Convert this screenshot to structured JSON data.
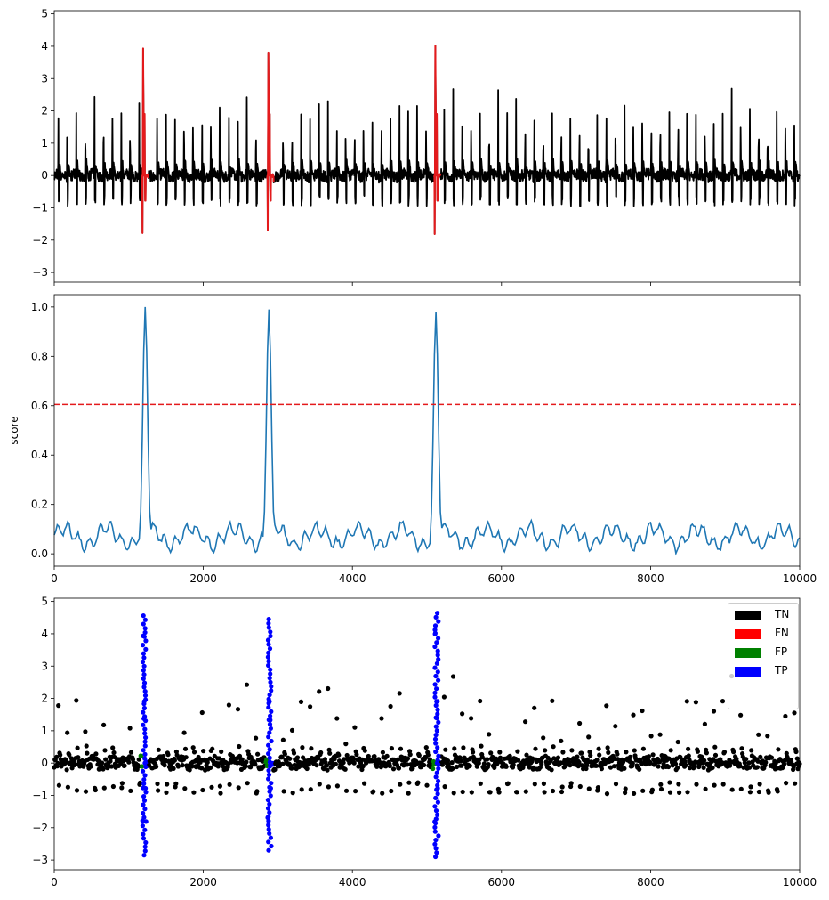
{
  "chart_data": [
    {
      "type": "line",
      "panel": "signal",
      "ylabel": "",
      "xlim": [
        0,
        10000
      ],
      "ylim": [
        -3.3,
        5.1
      ],
      "yticks": [
        -3,
        -2,
        -1,
        0,
        1,
        2,
        3,
        4,
        5
      ],
      "xtick_labels_visible": false,
      "series": [
        {
          "color": "#000000",
          "role": "normal signal",
          "beat_spacing": 120,
          "r_peak_range": [
            1.9,
            2.8
          ],
          "baseline_range": [
            -1.0,
            0.5
          ]
        },
        {
          "color": "#e41a1c",
          "role": "anomaly segments",
          "segments": [
            {
              "x_range": [
                1180,
                1260
              ],
              "max": 4.6,
              "min": -2.85
            },
            {
              "x_range": [
                2860,
                2940
              ],
              "max": 4.45,
              "min": -2.7
            },
            {
              "x_range": [
                5100,
                5180
              ],
              "max": 4.7,
              "min": -2.9
            }
          ]
        }
      ]
    },
    {
      "type": "line",
      "panel": "score",
      "ylabel": "score",
      "xlim": [
        0,
        10000
      ],
      "ylim": [
        -0.05,
        1.05
      ],
      "yticks": [
        0.0,
        0.2,
        0.4,
        0.6,
        0.8,
        1.0
      ],
      "xticks": [
        0,
        2000,
        4000,
        6000,
        8000,
        10000
      ],
      "threshold": 0.605,
      "threshold_color": "#e41a1c",
      "series_color": "#1f77b4",
      "peaks": [
        {
          "x": 1220,
          "value": 1.0
        },
        {
          "x": 2880,
          "value": 0.99
        },
        {
          "x": 5120,
          "value": 0.98
        }
      ],
      "baseline_range": [
        0.0,
        0.17
      ]
    },
    {
      "type": "scatter",
      "panel": "classification",
      "ylabel": "",
      "xlim": [
        0,
        10000
      ],
      "ylim": [
        -3.3,
        5.1
      ],
      "yticks": [
        -3,
        -2,
        -1,
        0,
        1,
        2,
        3,
        4,
        5
      ],
      "xticks": [
        0,
        2000,
        4000,
        6000,
        8000,
        10000
      ],
      "legend_position": "top-right",
      "legend": [
        {
          "label": "TN",
          "color": "#000000"
        },
        {
          "label": "FN",
          "color": "#ff0000"
        },
        {
          "label": "FP",
          "color": "#008000"
        },
        {
          "label": "TP",
          "color": "#0000ff"
        }
      ]
    }
  ]
}
